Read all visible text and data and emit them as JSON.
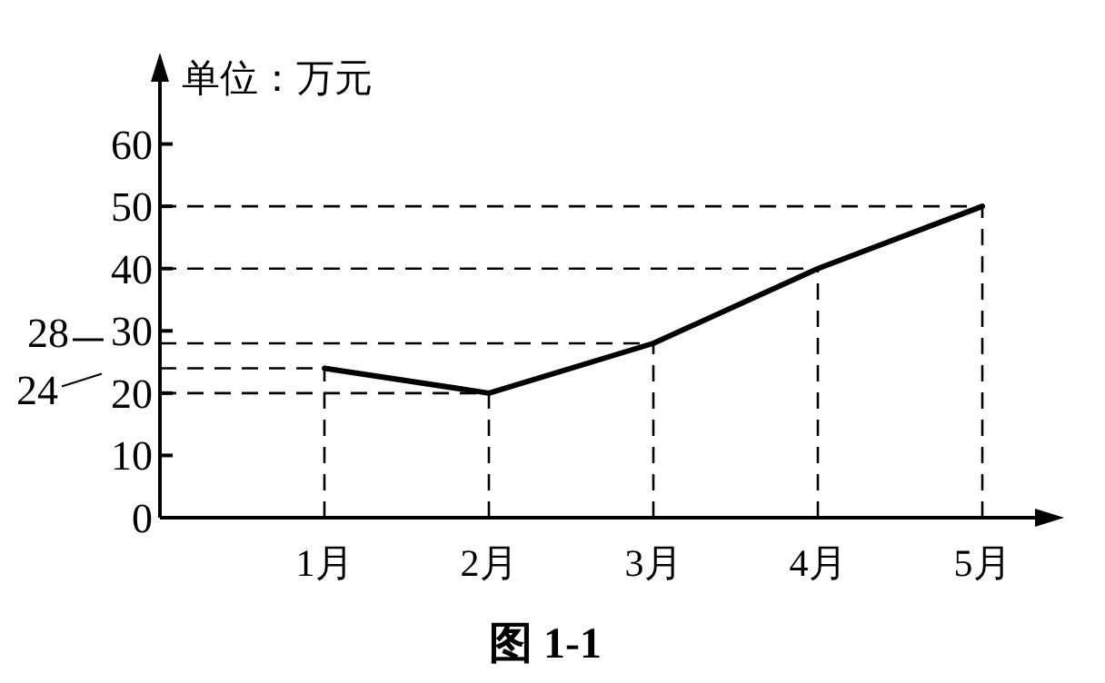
{
  "chart_data": {
    "type": "line",
    "title": "图 1-1",
    "ylabel": "单位：万元",
    "categories": [
      "1月",
      "2月",
      "3月",
      "4月",
      "5月"
    ],
    "values": [
      24,
      20,
      28,
      40,
      50
    ],
    "color": "#000000",
    "ylim": [
      0,
      70
    ],
    "yticks": [
      0,
      10,
      20,
      30,
      40,
      50,
      60
    ],
    "line_style": "solid",
    "ref_lines": [
      {
        "axis": "y",
        "value": 20,
        "line_style": "dashed"
      },
      {
        "axis": "y",
        "value": 24,
        "label": "24",
        "line_style": "dashed"
      },
      {
        "axis": "y",
        "value": 28,
        "label": "28",
        "line_style": "dashed"
      },
      {
        "axis": "y",
        "value": 40,
        "line_style": "dashed"
      },
      {
        "axis": "y",
        "value": 50,
        "line_style": "dashed"
      },
      {
        "axis": "x",
        "value": "1月",
        "line_style": "dashed"
      },
      {
        "axis": "x",
        "value": "2月",
        "line_style": "dashed"
      },
      {
        "axis": "x",
        "value": "3月",
        "line_style": "dashed"
      },
      {
        "axis": "x",
        "value": "4月",
        "line_style": "dashed"
      },
      {
        "axis": "x",
        "value": "5月",
        "line_style": "dashed"
      }
    ]
  }
}
